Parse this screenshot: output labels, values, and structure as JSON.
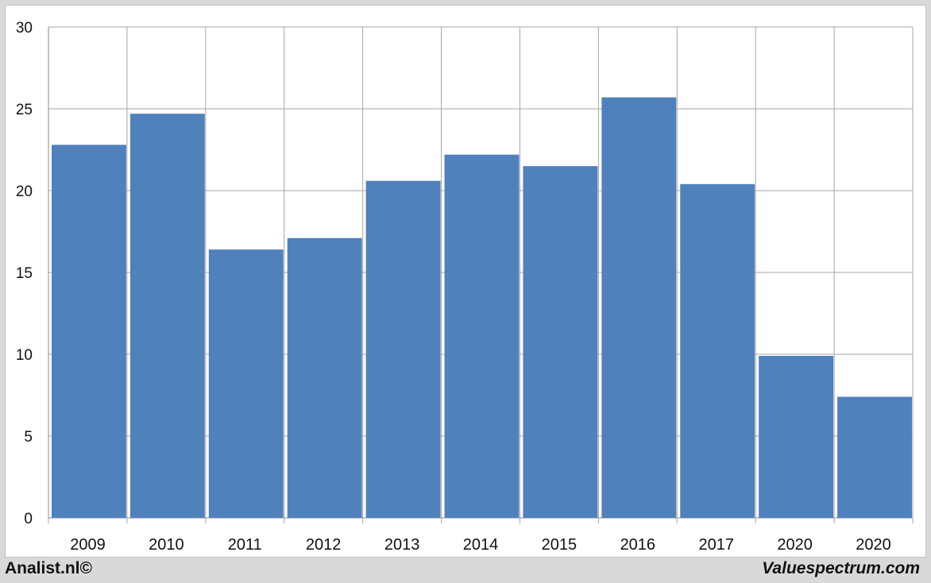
{
  "chart_data": {
    "type": "bar",
    "categories": [
      "2009",
      "2010",
      "2011",
      "2012",
      "2013",
      "2014",
      "2015",
      "2016",
      "2017",
      "2020",
      "2020"
    ],
    "values": [
      22.8,
      24.7,
      16.4,
      17.1,
      20.6,
      22.2,
      21.5,
      25.7,
      20.4,
      9.9,
      7.4
    ],
    "ylim": [
      0,
      30
    ],
    "yticks": [
      0,
      5,
      10,
      15,
      20,
      25,
      30
    ],
    "title": "",
    "xlabel": "",
    "ylabel": "",
    "grid": true,
    "legend": "none",
    "bar_color": "#4f81bd"
  },
  "footer": {
    "left": "Analist.nl©",
    "right": "Valuespectrum.com"
  }
}
